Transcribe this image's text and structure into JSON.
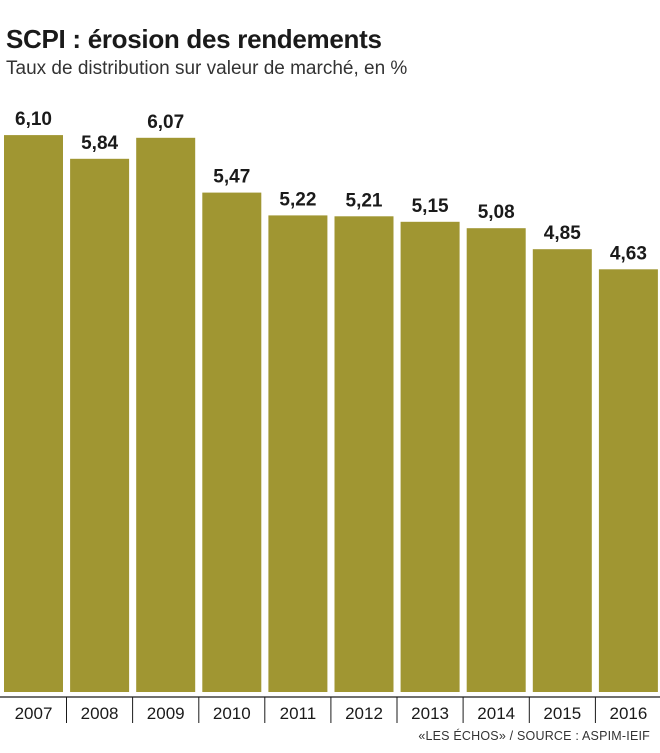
{
  "header": {
    "title": "SCPI : érosion des rendements",
    "subtitle": "Taux de distribution sur valeur de marché, en %"
  },
  "footer": {
    "source": "«LES ÉCHOS» / SOURCE : ASPIM-IEIF"
  },
  "colors": {
    "bar": "#a09632",
    "axis": "#1a1a1a",
    "text": "#1a1a1a"
  },
  "chart_data": {
    "type": "bar",
    "categories": [
      "2007",
      "2008",
      "2009",
      "2010",
      "2011",
      "2012",
      "2013",
      "2014",
      "2015",
      "2016"
    ],
    "values": [
      6.1,
      5.84,
      6.07,
      5.47,
      5.22,
      5.21,
      5.15,
      5.08,
      4.85,
      4.63
    ],
    "value_labels": [
      "6,10",
      "5,84",
      "6,07",
      "5,47",
      "5,22",
      "5,21",
      "5,15",
      "5,08",
      "4,85",
      "4,63"
    ],
    "title": "SCPI : érosion des rendements",
    "subtitle": "Taux de distribution sur valeur de marché, en %",
    "xlabel": "",
    "ylabel": "",
    "grid": false,
    "legend": "none"
  }
}
